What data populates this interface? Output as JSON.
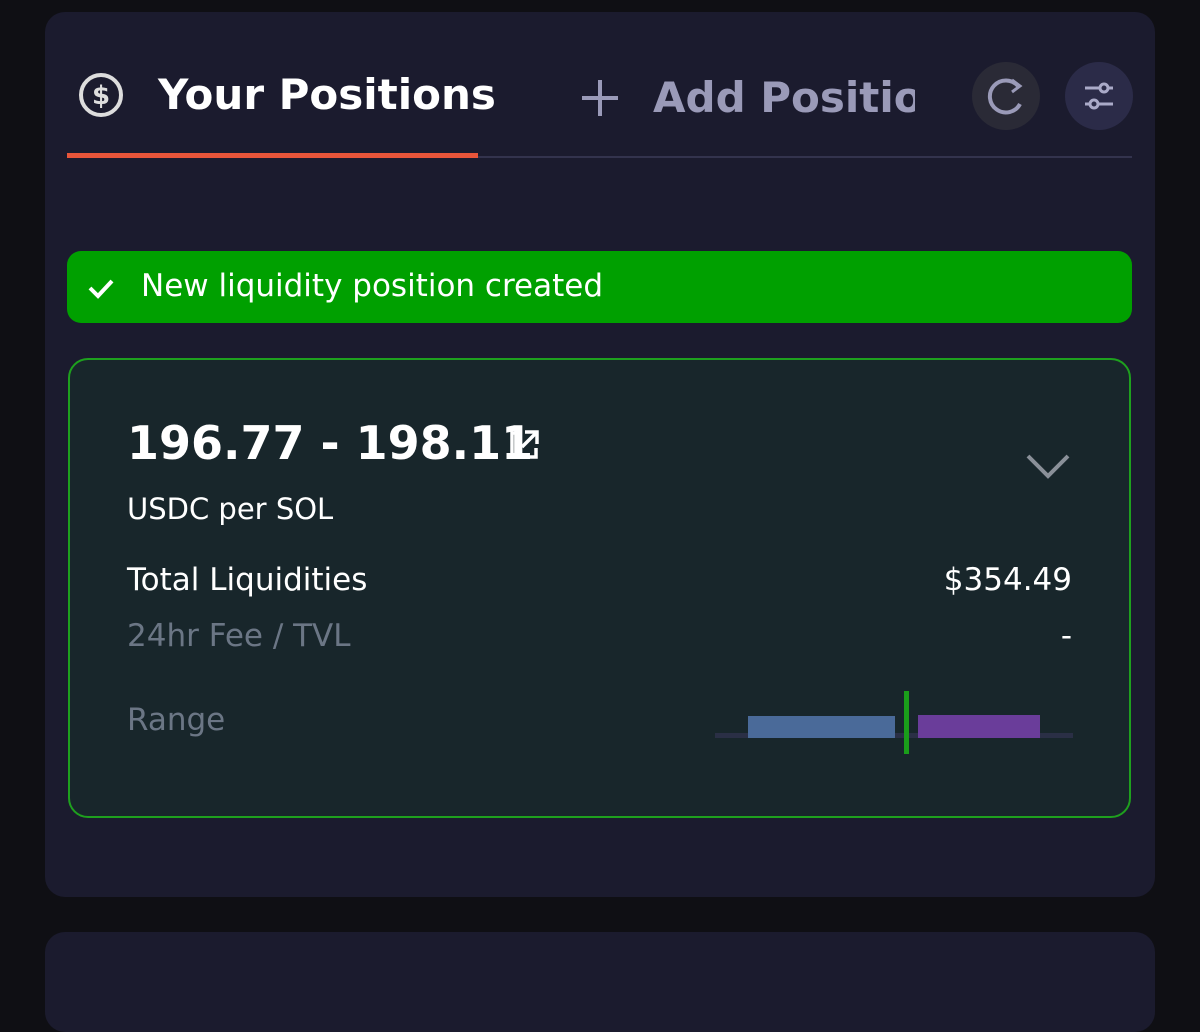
{
  "tabs": {
    "active": "Your Positions",
    "add": "Add Position"
  },
  "toast": {
    "message": "New liquidity position created"
  },
  "position": {
    "range": "196.77 - 198.11",
    "unit": "USDC per SOL",
    "rows": [
      {
        "label": "Total Liquidities",
        "value": "$354.49"
      },
      {
        "label": "24hr Fee / TVL",
        "value": "-"
      }
    ],
    "range_label": "Range"
  }
}
